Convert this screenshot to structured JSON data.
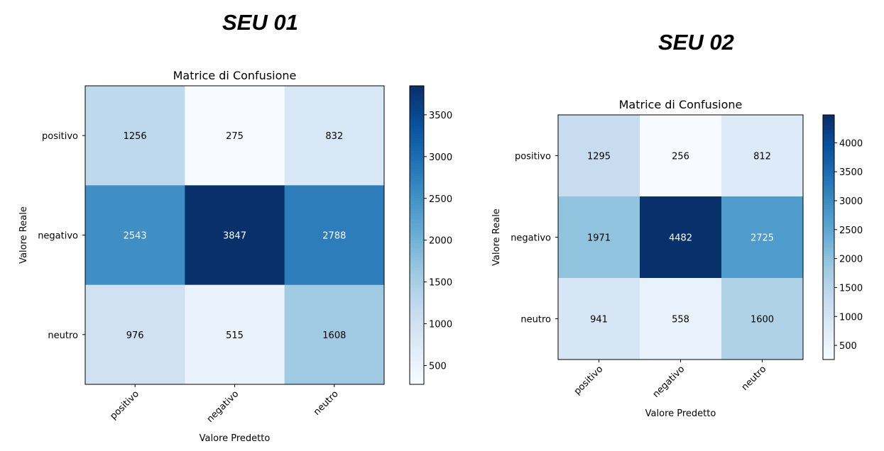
{
  "panels": [
    {
      "title": "SEU 01"
    },
    {
      "title": "SEU 02"
    }
  ],
  "chart_data": [
    {
      "type": "heatmap",
      "title": "Matrice di Confusione",
      "xlabel": "Valore Predetto",
      "ylabel": "Valore Reale",
      "x_categories": [
        "positivo",
        "negativo",
        "neutro"
      ],
      "y_categories": [
        "positivo",
        "negativo",
        "neutro"
      ],
      "values": [
        [
          1256,
          275,
          832
        ],
        [
          2543,
          3847,
          2788
        ],
        [
          976,
          515,
          1608
        ]
      ],
      "colormap": "Blues",
      "colorbar_range": [
        275,
        3847
      ],
      "colorbar_ticks": [
        500,
        1000,
        1500,
        2000,
        2500,
        3000,
        3500
      ]
    },
    {
      "type": "heatmap",
      "title": "Matrice di Confusione",
      "xlabel": "Valore Predetto",
      "ylabel": "Valore Reale",
      "x_categories": [
        "positivo",
        "negativo",
        "neutro"
      ],
      "y_categories": [
        "positivo",
        "negativo",
        "neutro"
      ],
      "values": [
        [
          1295,
          256,
          812
        ],
        [
          1971,
          4482,
          2725
        ],
        [
          941,
          558,
          1600
        ]
      ],
      "colormap": "Blues",
      "colorbar_range": [
        256,
        4482
      ],
      "colorbar_ticks": [
        500,
        1000,
        1500,
        2000,
        2500,
        3000,
        3500,
        4000
      ]
    }
  ]
}
